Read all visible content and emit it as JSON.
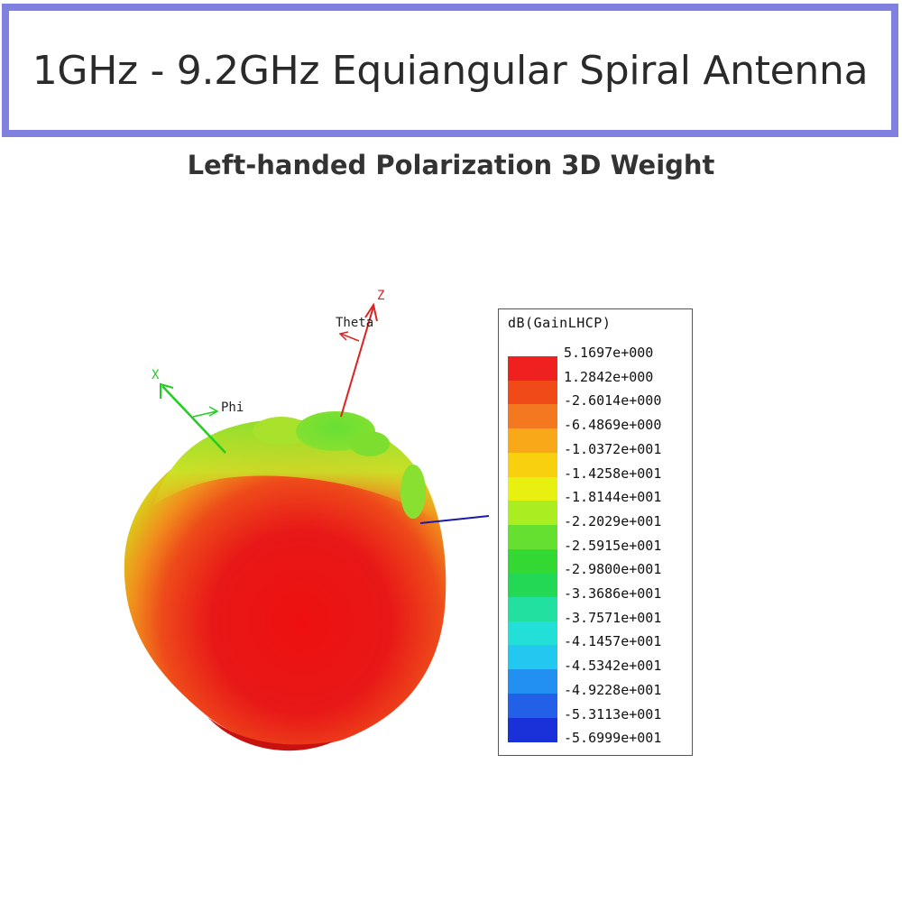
{
  "header": {
    "title": "1GHz - 9.2GHz Equiangular Spiral Antenna",
    "subtitle": "Left-handed Polarization 3D Weight"
  },
  "axes": {
    "x_label": "X",
    "z_label": "Z",
    "phi_label": "Phi",
    "theta_label": "Theta",
    "x_color": "#22cc22",
    "z_color": "#dd2222",
    "y_color": "#1a1aaa"
  },
  "legend": {
    "title": "dB(GainLHCP)",
    "labels": [
      "5.1697e+000",
      "1.2842e+000",
      "-2.6014e+000",
      "-6.4869e+000",
      "-1.0372e+001",
      "-1.4258e+001",
      "-1.8144e+001",
      "-2.2029e+001",
      "-2.5915e+001",
      "-2.9800e+001",
      "-3.3686e+001",
      "-3.7571e+001",
      "-4.1457e+001",
      "-4.5342e+001",
      "-4.9228e+001",
      "-5.3113e+001",
      "-5.6999e+001"
    ],
    "colors": [
      "#ee2020",
      "#f04a18",
      "#f47820",
      "#f8a818",
      "#f8d010",
      "#e8f010",
      "#aaee22",
      "#66e030",
      "#33d833",
      "#22d855",
      "#22e0a0",
      "#22e0d8",
      "#22c8f0",
      "#2290f0",
      "#2260e8",
      "#1a30d8"
    ]
  }
}
